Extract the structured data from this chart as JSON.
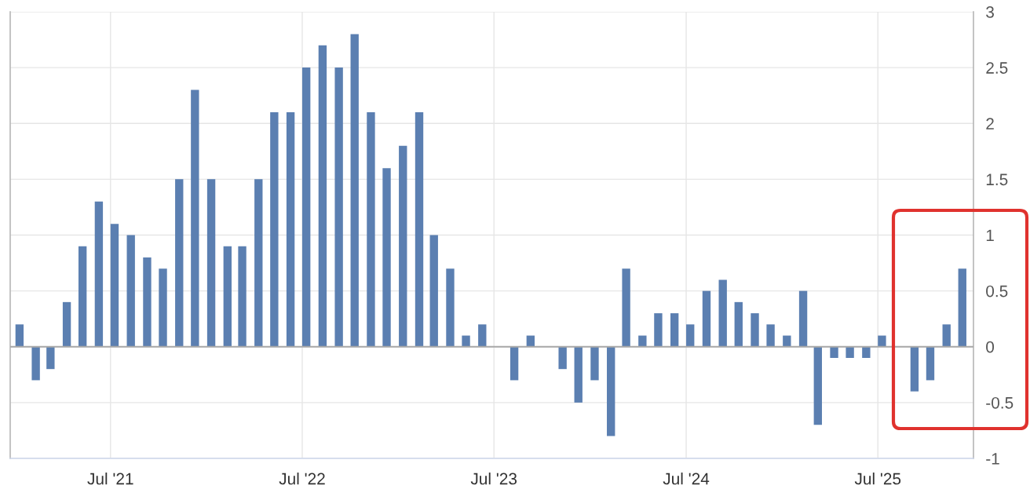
{
  "chart_data": {
    "type": "bar",
    "x": [
      "2021-01",
      "2021-02",
      "2021-03",
      "2021-04",
      "2021-05",
      "2021-06",
      "2021-07",
      "2021-08",
      "2021-09",
      "2021-10",
      "2021-11",
      "2021-12",
      "2022-01",
      "2022-02",
      "2022-03",
      "2022-04",
      "2022-05",
      "2022-06",
      "2022-07",
      "2022-08",
      "2022-09",
      "2022-10",
      "2022-11",
      "2022-12",
      "2023-01",
      "2023-02",
      "2023-03",
      "2023-04",
      "2023-05",
      "2023-06",
      "2023-07",
      "2023-08",
      "2023-09",
      "2023-10",
      "2023-11",
      "2023-12",
      "2024-01",
      "2024-02",
      "2024-03",
      "2024-04",
      "2024-05",
      "2024-06",
      "2024-07",
      "2024-08",
      "2024-09",
      "2024-10",
      "2024-11",
      "2024-12",
      "2025-01",
      "2025-02",
      "2025-03",
      "2025-04",
      "2025-05",
      "2025-06",
      "2025-07",
      "2025-08",
      "2025-09",
      "2025-10",
      "2025-11",
      "2025-12"
    ],
    "values": [
      0.2,
      -0.3,
      -0.2,
      0.4,
      0.9,
      1.3,
      1.1,
      1.0,
      0.8,
      0.7,
      1.5,
      2.3,
      1.5,
      0.9,
      0.9,
      1.5,
      2.1,
      2.1,
      2.5,
      2.7,
      2.5,
      2.8,
      2.1,
      1.6,
      1.8,
      2.1,
      1.0,
      0.7,
      0.1,
      0.2,
      0,
      -0.3,
      0.1,
      0,
      -0.2,
      -0.5,
      -0.3,
      -0.8,
      0.7,
      0.1,
      0.3,
      0.3,
      0.2,
      0.5,
      0.6,
      0.4,
      0.3,
      0.2,
      0.1,
      0.5,
      -0.7,
      -0.1,
      -0.1,
      -0.1,
      0.1,
      0,
      -0.4,
      -0.3,
      0.2,
      0.7
    ],
    "color": "#5b7fb1",
    "xlim": [
      "2020-12-22",
      "2025-12-30"
    ],
    "xticks": [
      {
        "value": "2021-07",
        "label": "Jul '21"
      },
      {
        "value": "2022-07",
        "label": "Jul '22"
      },
      {
        "value": "2023-07",
        "label": "Jul '23"
      },
      {
        "value": "2024-07",
        "label": "Jul '24"
      },
      {
        "value": "2025-07",
        "label": "Jul '25"
      }
    ],
    "ylim": [
      -1,
      3
    ],
    "yticks": [
      -1,
      -0.5,
      0,
      0.5,
      1,
      1.5,
      2,
      2.5,
      3
    ],
    "grid": true,
    "ref_lines": [
      {
        "axis": "y",
        "value": 0,
        "color": "#a8a8a8"
      }
    ]
  }
}
